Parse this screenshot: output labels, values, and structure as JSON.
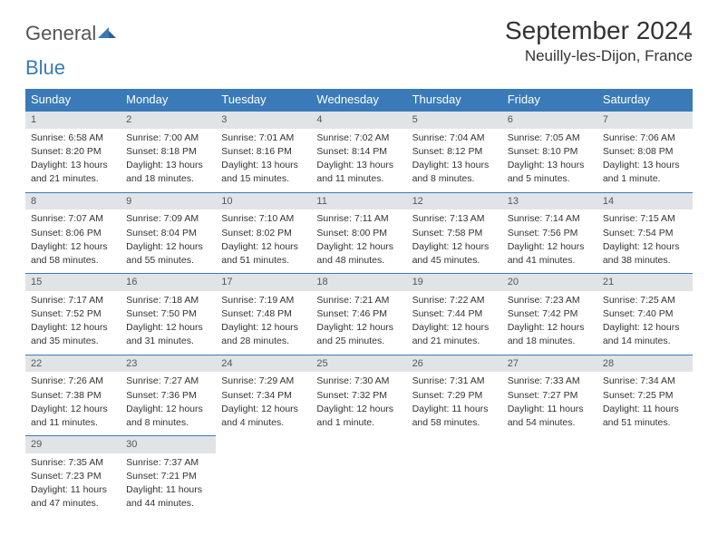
{
  "logo": {
    "part1": "General",
    "part2": "Blue"
  },
  "title": "September 2024",
  "location": "Neuilly-les-Dijon, France",
  "colors": {
    "header_bg": "#3a7ab8",
    "daybar_bg": "#e1e4e7",
    "text": "#333333",
    "logo_accent": "#3a7ab8"
  },
  "weekdays": [
    "Sunday",
    "Monday",
    "Tuesday",
    "Wednesday",
    "Thursday",
    "Friday",
    "Saturday"
  ],
  "weeks": [
    [
      {
        "n": "1",
        "sr": "Sunrise: 6:58 AM",
        "ss": "Sunset: 8:20 PM",
        "d1": "Daylight: 13 hours",
        "d2": "and 21 minutes."
      },
      {
        "n": "2",
        "sr": "Sunrise: 7:00 AM",
        "ss": "Sunset: 8:18 PM",
        "d1": "Daylight: 13 hours",
        "d2": "and 18 minutes."
      },
      {
        "n": "3",
        "sr": "Sunrise: 7:01 AM",
        "ss": "Sunset: 8:16 PM",
        "d1": "Daylight: 13 hours",
        "d2": "and 15 minutes."
      },
      {
        "n": "4",
        "sr": "Sunrise: 7:02 AM",
        "ss": "Sunset: 8:14 PM",
        "d1": "Daylight: 13 hours",
        "d2": "and 11 minutes."
      },
      {
        "n": "5",
        "sr": "Sunrise: 7:04 AM",
        "ss": "Sunset: 8:12 PM",
        "d1": "Daylight: 13 hours",
        "d2": "and 8 minutes."
      },
      {
        "n": "6",
        "sr": "Sunrise: 7:05 AM",
        "ss": "Sunset: 8:10 PM",
        "d1": "Daylight: 13 hours",
        "d2": "and 5 minutes."
      },
      {
        "n": "7",
        "sr": "Sunrise: 7:06 AM",
        "ss": "Sunset: 8:08 PM",
        "d1": "Daylight: 13 hours",
        "d2": "and 1 minute."
      }
    ],
    [
      {
        "n": "8",
        "sr": "Sunrise: 7:07 AM",
        "ss": "Sunset: 8:06 PM",
        "d1": "Daylight: 12 hours",
        "d2": "and 58 minutes."
      },
      {
        "n": "9",
        "sr": "Sunrise: 7:09 AM",
        "ss": "Sunset: 8:04 PM",
        "d1": "Daylight: 12 hours",
        "d2": "and 55 minutes."
      },
      {
        "n": "10",
        "sr": "Sunrise: 7:10 AM",
        "ss": "Sunset: 8:02 PM",
        "d1": "Daylight: 12 hours",
        "d2": "and 51 minutes."
      },
      {
        "n": "11",
        "sr": "Sunrise: 7:11 AM",
        "ss": "Sunset: 8:00 PM",
        "d1": "Daylight: 12 hours",
        "d2": "and 48 minutes."
      },
      {
        "n": "12",
        "sr": "Sunrise: 7:13 AM",
        "ss": "Sunset: 7:58 PM",
        "d1": "Daylight: 12 hours",
        "d2": "and 45 minutes."
      },
      {
        "n": "13",
        "sr": "Sunrise: 7:14 AM",
        "ss": "Sunset: 7:56 PM",
        "d1": "Daylight: 12 hours",
        "d2": "and 41 minutes."
      },
      {
        "n": "14",
        "sr": "Sunrise: 7:15 AM",
        "ss": "Sunset: 7:54 PM",
        "d1": "Daylight: 12 hours",
        "d2": "and 38 minutes."
      }
    ],
    [
      {
        "n": "15",
        "sr": "Sunrise: 7:17 AM",
        "ss": "Sunset: 7:52 PM",
        "d1": "Daylight: 12 hours",
        "d2": "and 35 minutes."
      },
      {
        "n": "16",
        "sr": "Sunrise: 7:18 AM",
        "ss": "Sunset: 7:50 PM",
        "d1": "Daylight: 12 hours",
        "d2": "and 31 minutes."
      },
      {
        "n": "17",
        "sr": "Sunrise: 7:19 AM",
        "ss": "Sunset: 7:48 PM",
        "d1": "Daylight: 12 hours",
        "d2": "and 28 minutes."
      },
      {
        "n": "18",
        "sr": "Sunrise: 7:21 AM",
        "ss": "Sunset: 7:46 PM",
        "d1": "Daylight: 12 hours",
        "d2": "and 25 minutes."
      },
      {
        "n": "19",
        "sr": "Sunrise: 7:22 AM",
        "ss": "Sunset: 7:44 PM",
        "d1": "Daylight: 12 hours",
        "d2": "and 21 minutes."
      },
      {
        "n": "20",
        "sr": "Sunrise: 7:23 AM",
        "ss": "Sunset: 7:42 PM",
        "d1": "Daylight: 12 hours",
        "d2": "and 18 minutes."
      },
      {
        "n": "21",
        "sr": "Sunrise: 7:25 AM",
        "ss": "Sunset: 7:40 PM",
        "d1": "Daylight: 12 hours",
        "d2": "and 14 minutes."
      }
    ],
    [
      {
        "n": "22",
        "sr": "Sunrise: 7:26 AM",
        "ss": "Sunset: 7:38 PM",
        "d1": "Daylight: 12 hours",
        "d2": "and 11 minutes."
      },
      {
        "n": "23",
        "sr": "Sunrise: 7:27 AM",
        "ss": "Sunset: 7:36 PM",
        "d1": "Daylight: 12 hours",
        "d2": "and 8 minutes."
      },
      {
        "n": "24",
        "sr": "Sunrise: 7:29 AM",
        "ss": "Sunset: 7:34 PM",
        "d1": "Daylight: 12 hours",
        "d2": "and 4 minutes."
      },
      {
        "n": "25",
        "sr": "Sunrise: 7:30 AM",
        "ss": "Sunset: 7:32 PM",
        "d1": "Daylight: 12 hours",
        "d2": "and 1 minute."
      },
      {
        "n": "26",
        "sr": "Sunrise: 7:31 AM",
        "ss": "Sunset: 7:29 PM",
        "d1": "Daylight: 11 hours",
        "d2": "and 58 minutes."
      },
      {
        "n": "27",
        "sr": "Sunrise: 7:33 AM",
        "ss": "Sunset: 7:27 PM",
        "d1": "Daylight: 11 hours",
        "d2": "and 54 minutes."
      },
      {
        "n": "28",
        "sr": "Sunrise: 7:34 AM",
        "ss": "Sunset: 7:25 PM",
        "d1": "Daylight: 11 hours",
        "d2": "and 51 minutes."
      }
    ],
    [
      {
        "n": "29",
        "sr": "Sunrise: 7:35 AM",
        "ss": "Sunset: 7:23 PM",
        "d1": "Daylight: 11 hours",
        "d2": "and 47 minutes."
      },
      {
        "n": "30",
        "sr": "Sunrise: 7:37 AM",
        "ss": "Sunset: 7:21 PM",
        "d1": "Daylight: 11 hours",
        "d2": "and 44 minutes."
      },
      null,
      null,
      null,
      null,
      null
    ]
  ]
}
